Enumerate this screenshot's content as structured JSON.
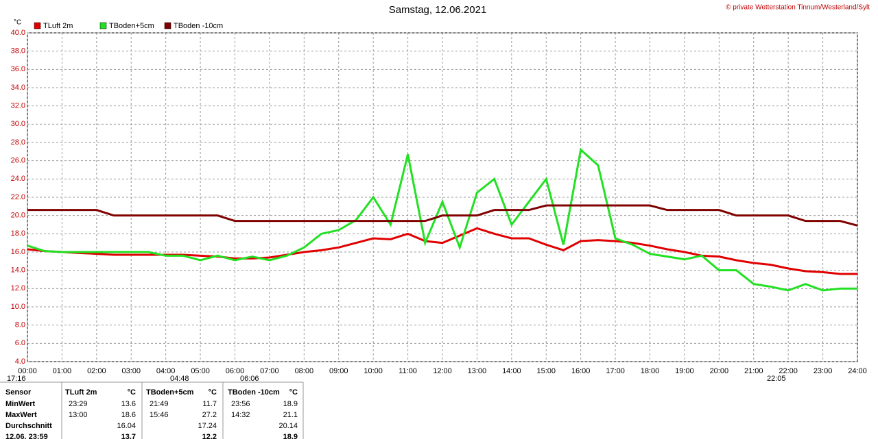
{
  "chart_data": {
    "type": "line",
    "title": "Samstag, 12.06.2021",
    "copyright": "© private Wetterstation Tinnum/Westerland/Sylt",
    "y_unit": "°C",
    "x": [
      0,
      0.5,
      1,
      1.5,
      2,
      2.5,
      3,
      3.5,
      4,
      4.5,
      5,
      5.5,
      6,
      6.5,
      7,
      7.5,
      8,
      8.5,
      9,
      9.5,
      10,
      10.5,
      11,
      11.5,
      12,
      12.5,
      13,
      13.5,
      14,
      14.5,
      15,
      15.5,
      16,
      16.5,
      17,
      17.5,
      18,
      18.5,
      19,
      19.5,
      20,
      20.5,
      21,
      21.5,
      22,
      22.5,
      23,
      23.5,
      24
    ],
    "series": [
      {
        "name": "TLuft 2m",
        "color": "#e00000",
        "values": [
          16.3,
          16.1,
          16.0,
          15.9,
          15.8,
          15.7,
          15.7,
          15.7,
          15.7,
          15.7,
          15.6,
          15.5,
          15.3,
          15.3,
          15.4,
          15.7,
          16.0,
          16.2,
          16.5,
          17.0,
          17.5,
          17.4,
          18.0,
          17.2,
          17.0,
          17.8,
          18.6,
          18.0,
          17.5,
          17.5,
          16.8,
          16.2,
          17.2,
          17.3,
          17.2,
          17.0,
          16.7,
          16.3,
          16.0,
          15.6,
          15.5,
          15.1,
          14.8,
          14.6,
          14.2,
          13.9,
          13.8,
          13.6,
          13.6
        ]
      },
      {
        "name": "TBoden+5cm",
        "color": "#22e022",
        "values": [
          16.7,
          16.1,
          16.0,
          16.0,
          16.0,
          16.0,
          16.0,
          16.0,
          15.6,
          15.6,
          15.1,
          15.6,
          15.1,
          15.5,
          15.1,
          15.6,
          16.5,
          18.0,
          18.4,
          19.5,
          22.0,
          19.0,
          26.7,
          17.0,
          21.5,
          16.5,
          22.5,
          24.0,
          19.0,
          21.5,
          24.0,
          16.8,
          27.2,
          25.5,
          17.5,
          16.8,
          15.8,
          15.5,
          15.2,
          15.6,
          14.0,
          14.0,
          12.5,
          12.2,
          11.8,
          12.5,
          11.8,
          12.0,
          12.0
        ]
      },
      {
        "name": "TBoden -10cm",
        "color": "#800000",
        "values": [
          20.6,
          20.6,
          20.6,
          20.6,
          20.6,
          20.0,
          20.0,
          20.0,
          20.0,
          20.0,
          20.0,
          20.0,
          19.4,
          19.4,
          19.4,
          19.4,
          19.4,
          19.4,
          19.4,
          19.4,
          19.4,
          19.4,
          19.4,
          19.4,
          20.0,
          20.0,
          20.0,
          20.6,
          20.6,
          20.6,
          21.1,
          21.1,
          21.1,
          21.1,
          21.1,
          21.1,
          21.1,
          20.6,
          20.6,
          20.6,
          20.6,
          20.0,
          20.0,
          20.0,
          20.0,
          19.4,
          19.4,
          19.4,
          18.9
        ]
      }
    ],
    "xlim": [
      0,
      24
    ],
    "xticks": [
      {
        "value": 0,
        "label": "00:00"
      },
      {
        "value": 1,
        "label": "01:00"
      },
      {
        "value": 2,
        "label": "02:00"
      },
      {
        "value": 3,
        "label": "03:00"
      },
      {
        "value": 4,
        "label": "04:00"
      },
      {
        "value": 5,
        "label": "05:00"
      },
      {
        "value": 6,
        "label": "06:00"
      },
      {
        "value": 7,
        "label": "07:00"
      },
      {
        "value": 8,
        "label": "08:00"
      },
      {
        "value": 9,
        "label": "09:00"
      },
      {
        "value": 10,
        "label": "10:00"
      },
      {
        "value": 11,
        "label": "11:00"
      },
      {
        "value": 12,
        "label": "12:00"
      },
      {
        "value": 13,
        "label": "13:00"
      },
      {
        "value": 14,
        "label": "14:00"
      },
      {
        "value": 15,
        "label": "15:00"
      },
      {
        "value": 16,
        "label": "16:00"
      },
      {
        "value": 17,
        "label": "17:00"
      },
      {
        "value": 18,
        "label": "18:00"
      },
      {
        "value": 19,
        "label": "19:00"
      },
      {
        "value": 20,
        "label": "20:00"
      },
      {
        "value": 21,
        "label": "21:00"
      },
      {
        "value": 22,
        "label": "22:00"
      },
      {
        "value": 23,
        "label": "23:00"
      },
      {
        "value": 24,
        "label": "24:00"
      }
    ],
    "ylim": [
      4,
      40
    ],
    "yticks": [
      {
        "value": 4,
        "label": "4.0"
      },
      {
        "value": 6,
        "label": "6.0"
      },
      {
        "value": 8,
        "label": "8.0"
      },
      {
        "value": 10,
        "label": "10.0"
      },
      {
        "value": 12,
        "label": "12.0"
      },
      {
        "value": 14,
        "label": "14.0"
      },
      {
        "value": 16,
        "label": "16.0"
      },
      {
        "value": 18,
        "label": "18.0"
      },
      {
        "value": 20,
        "label": "20.0"
      },
      {
        "value": 22,
        "label": "22.0"
      },
      {
        "value": 24,
        "label": "24.0"
      },
      {
        "value": 26,
        "label": "26.0"
      },
      {
        "value": 28,
        "label": "28.0"
      },
      {
        "value": 30,
        "label": "30.0"
      },
      {
        "value": 32,
        "label": "32.0"
      },
      {
        "value": 34,
        "label": "34.0"
      },
      {
        "value": 36,
        "label": "36.0"
      },
      {
        "value": 38,
        "label": "38.0"
      },
      {
        "value": 40,
        "label": "40.0"
      }
    ],
    "grid": true,
    "annotations": [
      "17:16",
      "04:48",
      "06:06",
      "22:05"
    ]
  },
  "table": {
    "header": [
      "Sensor",
      "TLuft 2m",
      "°C",
      "TBoden+5cm",
      "°C",
      "TBoden -10cm",
      "°C"
    ],
    "rows": [
      [
        "MinWert",
        "23:29",
        13.6,
        "21:49",
        11.7,
        "23:56",
        18.9
      ],
      [
        "MaxWert",
        "13:00",
        18.6,
        "15:46",
        27.2,
        "14:32",
        21.1
      ],
      [
        "Durchschnitt",
        null,
        16.04,
        null,
        17.24,
        null,
        20.14
      ],
      [
        "12.06. 23:59",
        null,
        13.7,
        null,
        12.2,
        null,
        18.9
      ]
    ]
  }
}
